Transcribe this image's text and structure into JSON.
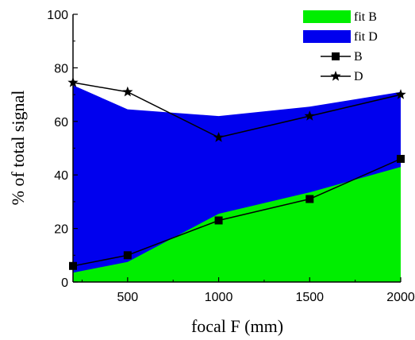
{
  "chart_data": {
    "type": "area",
    "xlabel": "focal F (mm)",
    "ylabel": "% of total signal",
    "xlim": [
      200,
      2000
    ],
    "ylim": [
      0,
      100
    ],
    "xticks": [
      500,
      1000,
      1500,
      2000
    ],
    "yticks": [
      0,
      20,
      40,
      60,
      80,
      100
    ],
    "legend_position": "top-right",
    "series": [
      {
        "name": "fit B",
        "kind": "area",
        "color": "#00ee00",
        "x": [
          200,
          500,
          1000,
          1500,
          2000
        ],
        "y": [
          3.5,
          7.5,
          25.5,
          33.5,
          43
        ]
      },
      {
        "name": "fit D",
        "kind": "area",
        "color": "#0000ee",
        "x": [
          200,
          500,
          1000,
          1500,
          2000
        ],
        "y": [
          73.5,
          64.5,
          62,
          65.5,
          71
        ]
      },
      {
        "name": "B",
        "kind": "line",
        "marker": "square",
        "color": "#000000",
        "x": [
          200,
          500,
          1000,
          1500,
          2000
        ],
        "y": [
          6,
          10,
          23,
          31,
          46
        ]
      },
      {
        "name": "D",
        "kind": "line",
        "marker": "star",
        "color": "#000000",
        "x": [
          200,
          500,
          1000,
          1500,
          2000
        ],
        "y": [
          74.5,
          71,
          54,
          62,
          70
        ]
      }
    ]
  }
}
